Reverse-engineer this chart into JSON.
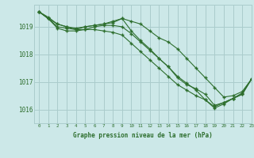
{
  "title": "Graphe pression niveau de la mer (hPa)",
  "bg_color": "#cce8e8",
  "grid_color": "#aacccc",
  "line_color": "#2d6e2d",
  "xlim": [
    -0.5,
    23
  ],
  "ylim": [
    1015.5,
    1019.8
  ],
  "yticks": [
    1016,
    1017,
    1018,
    1019
  ],
  "xticks": [
    0,
    1,
    2,
    3,
    4,
    5,
    6,
    7,
    8,
    9,
    10,
    11,
    12,
    13,
    14,
    15,
    16,
    17,
    18,
    19,
    20,
    21,
    22,
    23
  ],
  "series": [
    [
      1019.55,
      1019.3,
      1019.1,
      1019.0,
      1018.9,
      1019.0,
      1019.05,
      1019.1,
      1019.2,
      1019.3,
      1019.2,
      1019.1,
      1018.85,
      1018.6,
      1018.45,
      1018.2,
      1017.85,
      1017.5,
      1017.15,
      1016.8,
      1016.45,
      1016.5,
      1016.65,
      1017.1
    ],
    [
      1019.55,
      1019.3,
      1019.0,
      1018.95,
      1018.9,
      1018.9,
      1018.9,
      1018.85,
      1018.8,
      1018.7,
      1018.4,
      1018.1,
      1017.8,
      1017.5,
      1017.2,
      1016.9,
      1016.7,
      1016.5,
      1016.35,
      1016.1,
      1016.25,
      1016.4,
      1016.55,
      1017.1
    ],
    [
      1019.55,
      1019.3,
      1018.95,
      1018.85,
      1018.85,
      1018.9,
      1019.0,
      1019.05,
      1019.05,
      1019.0,
      1018.75,
      1018.45,
      1018.15,
      1017.85,
      1017.55,
      1017.15,
      1016.9,
      1016.75,
      1016.55,
      1016.15,
      1016.25,
      1016.4,
      1016.55,
      1017.1
    ],
    [
      1019.55,
      1019.35,
      1019.1,
      1019.0,
      1018.95,
      1019.0,
      1019.05,
      1019.1,
      1019.15,
      1019.3,
      1018.85,
      1018.5,
      1018.2,
      1017.85,
      1017.55,
      1017.2,
      1016.95,
      1016.7,
      1016.35,
      1016.05,
      1016.2,
      1016.4,
      1016.6,
      1017.1
    ]
  ]
}
